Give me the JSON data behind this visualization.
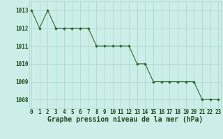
{
  "hours": [
    0,
    1,
    2,
    3,
    4,
    5,
    6,
    7,
    8,
    9,
    10,
    11,
    12,
    13,
    14,
    15,
    16,
    17,
    18,
    19,
    20,
    21,
    22,
    23
  ],
  "pressure": [
    1013,
    1012,
    1013,
    1012,
    1012,
    1012,
    1012,
    1012,
    1011,
    1011,
    1011,
    1011,
    1011,
    1010,
    1010,
    1009,
    1009,
    1009,
    1009,
    1009,
    1009,
    1008,
    1008,
    1008
  ],
  "line_color": "#2d6a2d",
  "marker_color": "#2d6a2d",
  "bg_color": "#cceee8",
  "grid_color": "#aad4ce",
  "xlabel": "Graphe pression niveau de la mer (hPa)",
  "xlabel_color": "#1a4a1a",
  "tick_label_color": "#1a4a1a",
  "ylim": [
    1007.5,
    1013.5
  ],
  "yticks": [
    1008,
    1009,
    1010,
    1011,
    1012,
    1013
  ],
  "xticks": [
    0,
    1,
    2,
    3,
    4,
    5,
    6,
    7,
    8,
    9,
    10,
    11,
    12,
    13,
    14,
    15,
    16,
    17,
    18,
    19,
    20,
    21,
    22,
    23
  ],
  "tick_fontsize": 5.5,
  "xlabel_fontsize": 7.0,
  "ytick_fontsize": 5.5
}
